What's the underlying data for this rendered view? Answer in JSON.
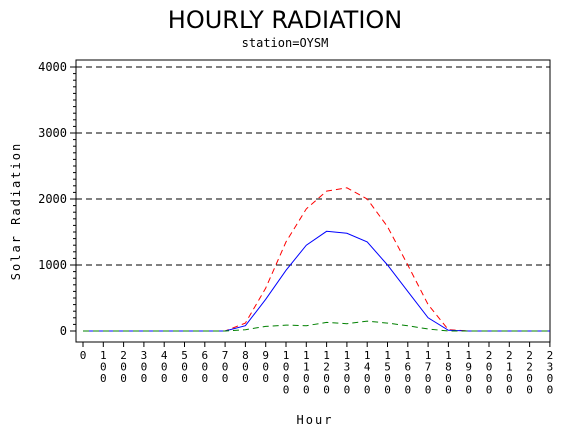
{
  "chart_data": {
    "type": "line",
    "title": "HOURLY RADIATION",
    "subtitle": "station=OYSM",
    "xlabel": "Hour",
    "ylabel": "Solar Radiation",
    "ylim": [
      0,
      4000
    ],
    "yticks": [
      0,
      1000,
      2000,
      3000,
      4000
    ],
    "ytick_labels": [
      "0",
      "1000",
      "2000",
      "3000",
      "4000"
    ],
    "grid": "horizontal dashed at y ticks",
    "legend": "none",
    "x": [
      0,
      100,
      200,
      300,
      400,
      500,
      600,
      700,
      800,
      900,
      1000,
      1100,
      1200,
      1300,
      1400,
      1500,
      1600,
      1700,
      1800,
      1900,
      2000,
      2100,
      2200,
      2300
    ],
    "x_tick_labels": [
      "0",
      "100",
      "200",
      "300",
      "400",
      "500",
      "600",
      "700",
      "800",
      "900",
      "1000",
      "1100",
      "1200",
      "1300",
      "1400",
      "1500",
      "1600",
      "1700",
      "1800",
      "1900",
      "2000",
      "2100",
      "2200",
      "2300"
    ],
    "series": [
      {
        "color": "#ff0000",
        "dash": "dashed",
        "values": [
          0,
          0,
          0,
          0,
          0,
          0,
          0,
          0,
          120,
          650,
          1350,
          1850,
          2120,
          2170,
          2000,
          1580,
          1000,
          400,
          20,
          0,
          0,
          0,
          0,
          0
        ]
      },
      {
        "color": "#0000ff",
        "dash": "solid",
        "values": [
          0,
          0,
          0,
          0,
          0,
          0,
          0,
          0,
          80,
          480,
          920,
          1300,
          1510,
          1480,
          1350,
          1000,
          600,
          200,
          10,
          0,
          0,
          0,
          0,
          0
        ]
      },
      {
        "color": "#008000",
        "dash": "dashed",
        "values": [
          0,
          0,
          0,
          0,
          0,
          0,
          0,
          0,
          20,
          70,
          90,
          80,
          130,
          110,
          150,
          120,
          80,
          30,
          0,
          0,
          0,
          0,
          0,
          0
        ]
      }
    ]
  }
}
